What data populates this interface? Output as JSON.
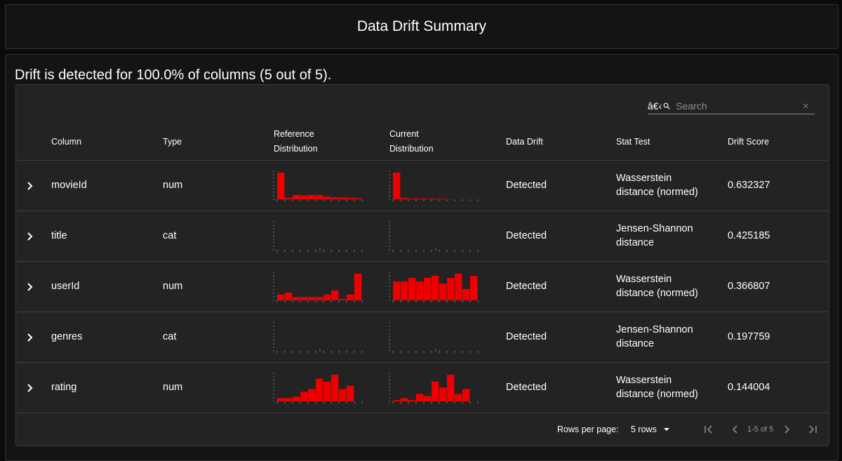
{
  "header": {
    "title": "Data Drift Summary"
  },
  "summary": "Drift is detected for 100.0% of columns (5 out of 5).",
  "search": {
    "prefix": "â€‹",
    "placeholder": "Search",
    "value": ""
  },
  "columns": {
    "column": "Column",
    "type": "Type",
    "reference_1": "Reference",
    "reference_2": "Distribution",
    "current_1": "Current",
    "current_2": "Distribution",
    "data_drift": "Data Drift",
    "stat_test": "Stat Test",
    "drift_score": "Drift Score"
  },
  "colors": {
    "bar": "#ee0000",
    "background": "#232323"
  },
  "rows": [
    {
      "column": "movieId",
      "type": "num",
      "data_drift": "Detected",
      "stat_test_1": "Wasserstein",
      "stat_test_2": "distance (normed)",
      "drift_score": "0.632327",
      "reference_hist": [
        1.0,
        0.06,
        0.16,
        0.14,
        0.16,
        0.16,
        0.1,
        0.07,
        0.07,
        0.05,
        0.04
      ],
      "current_hist": [
        1.0,
        0.05,
        0.03,
        0.03,
        0.02,
        0.02,
        0.02,
        0.01,
        0.0,
        0.0,
        0.0
      ]
    },
    {
      "column": "title",
      "type": "cat",
      "data_drift": "Detected",
      "stat_test_1": "Jensen-Shannon",
      "stat_test_2": "distance",
      "drift_score": "0.425185",
      "reference_hist": [],
      "current_hist": []
    },
    {
      "column": "userId",
      "type": "num",
      "data_drift": "Detected",
      "stat_test_1": "Wasserstein",
      "stat_test_2": "distance (normed)",
      "drift_score": "0.366807",
      "reference_hist": [
        0.22,
        0.29,
        0.12,
        0.12,
        0.12,
        0.12,
        0.22,
        0.37,
        0.05,
        0.22,
        1.0
      ],
      "current_hist": [
        0.71,
        0.71,
        0.84,
        0.71,
        0.84,
        0.92,
        0.63,
        0.84,
        1.0,
        0.42,
        0.92
      ]
    },
    {
      "column": "genres",
      "type": "cat",
      "data_drift": "Detected",
      "stat_test_1": "Jensen-Shannon",
      "stat_test_2": "distance",
      "drift_score": "0.197759",
      "reference_hist": [],
      "current_hist": []
    },
    {
      "column": "rating",
      "type": "num",
      "data_drift": "Detected",
      "stat_test_1": "Wasserstein",
      "stat_test_2": "distance (normed)",
      "drift_score": "0.144004",
      "reference_hist": [
        0.12,
        0.12,
        0.18,
        0.36,
        0.46,
        0.85,
        0.74,
        1.0,
        0.46,
        0.58,
        0.0
      ],
      "current_hist": [
        0.05,
        0.12,
        0.05,
        0.28,
        0.2,
        0.74,
        0.52,
        1.0,
        0.28,
        0.46,
        0.0
      ]
    }
  ],
  "footer": {
    "rows_per_page_label": "Rows per page:",
    "rows_per_page_value": "5 rows",
    "range": "1-5 of 5"
  }
}
